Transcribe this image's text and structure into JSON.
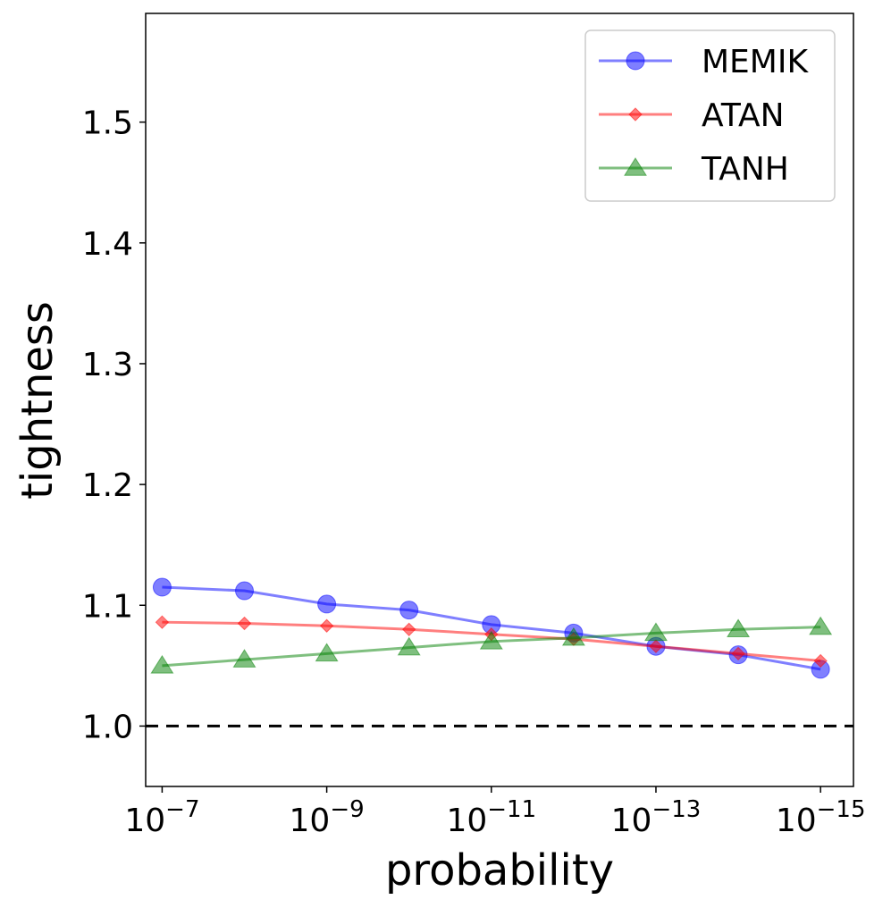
{
  "chart_data": {
    "type": "line",
    "title": "",
    "xlabel": "probability",
    "ylabel": "tightness",
    "x": [
      -7,
      -8,
      -9,
      -10,
      -11,
      -12,
      -13,
      -14,
      -15
    ],
    "xlim": [
      -6.8,
      -15.4
    ],
    "ylim": [
      0.95,
      1.59
    ],
    "yticks": [
      1.0,
      1.1,
      1.2,
      1.3,
      1.4,
      1.5
    ],
    "ytick_labels": [
      "1.0",
      "1.1",
      "1.2",
      "1.3",
      "1.4",
      "1.5"
    ],
    "xticks": [
      {
        "value": -7,
        "base": "10",
        "exp": "−7"
      },
      {
        "value": -9,
        "base": "10",
        "exp": "−9"
      },
      {
        "value": -11,
        "base": "10",
        "exp": "−11"
      },
      {
        "value": -13,
        "base": "10",
        "exp": "−13"
      },
      {
        "value": -15,
        "base": "10",
        "exp": "−15"
      }
    ],
    "reference_line": {
      "y": 1.0,
      "style": "dashed",
      "color": "#000000"
    },
    "legend_position": "top-right",
    "series": [
      {
        "name": "MEMIK",
        "color": "#0000ff",
        "marker": "circle",
        "values": [
          1.115,
          1.112,
          1.101,
          1.096,
          1.084,
          1.077,
          1.066,
          1.059,
          1.047
        ]
      },
      {
        "name": "ATAN",
        "color": "#ff0000",
        "marker": "diamond",
        "values": [
          1.086,
          1.085,
          1.083,
          1.08,
          1.076,
          1.072,
          1.066,
          1.06,
          1.054
        ]
      },
      {
        "name": "TANH",
        "color": "#008000",
        "marker": "triangle",
        "values": [
          1.05,
          1.055,
          1.06,
          1.065,
          1.07,
          1.073,
          1.077,
          1.08,
          1.082
        ]
      }
    ]
  }
}
